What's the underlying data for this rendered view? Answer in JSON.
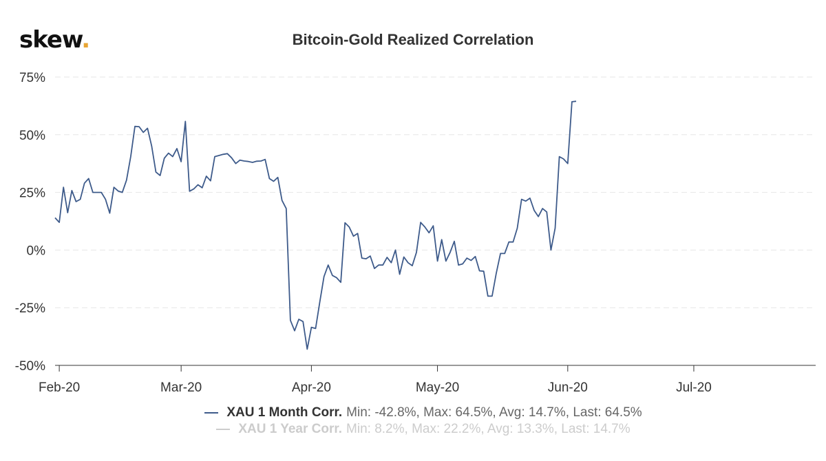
{
  "brand": {
    "name": "skew",
    "dot": "."
  },
  "chart_data": {
    "type": "line",
    "title": "Bitcoin-Gold Realized Correlation",
    "xlabel": "",
    "ylabel": "",
    "ylim": [
      -50,
      75
    ],
    "yticks": [
      75,
      50,
      25,
      0,
      -25,
      -50
    ],
    "ytick_labels": [
      "75%",
      "50%",
      "25%",
      "0%",
      "-25%",
      "-50%"
    ],
    "xlim": [
      "2020-01-31",
      "2020-07-30"
    ],
    "xticks": [
      {
        "date": "2020-02-01",
        "label": "Feb-20"
      },
      {
        "date": "2020-03-01",
        "label": "Mar-20"
      },
      {
        "date": "2020-04-01",
        "label": "Apr-20"
      },
      {
        "date": "2020-05-01",
        "label": "May-20"
      },
      {
        "date": "2020-06-01",
        "label": "Jun-20"
      },
      {
        "date": "2020-07-01",
        "label": "Jul-20"
      }
    ],
    "grid": true,
    "colors": {
      "series1": "#3d5a8a",
      "series2": "#cccccc",
      "grid": "#e6e6e6",
      "axis": "#333333"
    },
    "series": [
      {
        "name": "XAU 1 Month Corr.",
        "stats": "Min: -42.8%, Max: 64.5%, Avg: 14.7%, Last: 64.5%",
        "points": [
          [
            "2020-01-31",
            14
          ],
          [
            "2020-02-01",
            12
          ],
          [
            "2020-02-02",
            27.2
          ],
          [
            "2020-02-03",
            16.2
          ],
          [
            "2020-02-04",
            25.8
          ],
          [
            "2020-02-05",
            21
          ],
          [
            "2020-02-06",
            22
          ],
          [
            "2020-02-07",
            29
          ],
          [
            "2020-02-08",
            31
          ],
          [
            "2020-02-09",
            25
          ],
          [
            "2020-02-11",
            25
          ],
          [
            "2020-02-12",
            22
          ],
          [
            "2020-02-13",
            16
          ],
          [
            "2020-02-14",
            27.2
          ],
          [
            "2020-02-15",
            25.6
          ],
          [
            "2020-02-16",
            25
          ],
          [
            "2020-02-17",
            30.3
          ],
          [
            "2020-02-18",
            40.5
          ],
          [
            "2020-02-19",
            53.6
          ],
          [
            "2020-02-20",
            53.5
          ],
          [
            "2020-02-21",
            51
          ],
          [
            "2020-02-22",
            52.8
          ],
          [
            "2020-02-23",
            45
          ],
          [
            "2020-02-24",
            33.8
          ],
          [
            "2020-02-25",
            32.3
          ],
          [
            "2020-02-26",
            39.8
          ],
          [
            "2020-02-27",
            42
          ],
          [
            "2020-02-28",
            40.5
          ],
          [
            "2020-02-29",
            44
          ],
          [
            "2020-03-01",
            38.3
          ],
          [
            "2020-03-02",
            55.8
          ],
          [
            "2020-03-03",
            25.5
          ],
          [
            "2020-03-04",
            26.5
          ],
          [
            "2020-03-05",
            28.3
          ],
          [
            "2020-03-06",
            27
          ],
          [
            "2020-03-07",
            32
          ],
          [
            "2020-03-08",
            30
          ],
          [
            "2020-03-09",
            40.5
          ],
          [
            "2020-03-10",
            41
          ],
          [
            "2020-03-11",
            41.5
          ],
          [
            "2020-03-12",
            41.8
          ],
          [
            "2020-03-13",
            40
          ],
          [
            "2020-03-14",
            37.5
          ],
          [
            "2020-03-15",
            39
          ],
          [
            "2020-03-16",
            38.6
          ],
          [
            "2020-03-17",
            38.4
          ],
          [
            "2020-03-18",
            38
          ],
          [
            "2020-03-19",
            38.5
          ],
          [
            "2020-03-20",
            38.6
          ],
          [
            "2020-03-21",
            39.3
          ],
          [
            "2020-03-22",
            31
          ],
          [
            "2020-03-23",
            29.8
          ],
          [
            "2020-03-24",
            31.5
          ],
          [
            "2020-03-25",
            21.5
          ],
          [
            "2020-03-26",
            18
          ],
          [
            "2020-03-27",
            -30.5
          ],
          [
            "2020-03-28",
            -35
          ],
          [
            "2020-03-29",
            -30
          ],
          [
            "2020-03-30",
            -31
          ],
          [
            "2020-03-31",
            -43
          ],
          [
            "2020-04-01",
            -33.5
          ],
          [
            "2020-04-02",
            -34
          ],
          [
            "2020-04-03",
            -22.5
          ],
          [
            "2020-04-04",
            -11.5
          ],
          [
            "2020-04-05",
            -6.5
          ],
          [
            "2020-04-06",
            -11
          ],
          [
            "2020-04-07",
            -12
          ],
          [
            "2020-04-08",
            -14
          ],
          [
            "2020-04-09",
            11.8
          ],
          [
            "2020-04-10",
            10
          ],
          [
            "2020-04-11",
            6
          ],
          [
            "2020-04-12",
            7.2
          ],
          [
            "2020-04-13",
            -3.5
          ],
          [
            "2020-04-14",
            -3.8
          ],
          [
            "2020-04-15",
            -2.6
          ],
          [
            "2020-04-16",
            -8
          ],
          [
            "2020-04-17",
            -6.5
          ],
          [
            "2020-04-18",
            -6.5
          ],
          [
            "2020-04-19",
            -3.2
          ],
          [
            "2020-04-20",
            -5.5
          ],
          [
            "2020-04-21",
            0
          ],
          [
            "2020-04-22",
            -10.5
          ],
          [
            "2020-04-23",
            -3
          ],
          [
            "2020-04-24",
            -5.5
          ],
          [
            "2020-04-25",
            -6.8
          ],
          [
            "2020-04-26",
            -1
          ],
          [
            "2020-04-27",
            12
          ],
          [
            "2020-04-28",
            10
          ],
          [
            "2020-04-29",
            7.5
          ],
          [
            "2020-04-30",
            10.5
          ],
          [
            "2020-05-01",
            -4.8
          ],
          [
            "2020-05-02",
            4.5
          ],
          [
            "2020-05-03",
            -4.8
          ],
          [
            "2020-05-04",
            -1
          ],
          [
            "2020-05-05",
            3.8
          ],
          [
            "2020-05-06",
            -6.5
          ],
          [
            "2020-05-07",
            -6
          ],
          [
            "2020-05-08",
            -3.5
          ],
          [
            "2020-05-09",
            -4.5
          ],
          [
            "2020-05-10",
            -2.8
          ],
          [
            "2020-05-11",
            -9
          ],
          [
            "2020-05-12",
            -9.2
          ],
          [
            "2020-05-13",
            -20
          ],
          [
            "2020-05-14",
            -20
          ],
          [
            "2020-05-15",
            -10
          ],
          [
            "2020-05-16",
            -1.5
          ],
          [
            "2020-05-17",
            -1.5
          ],
          [
            "2020-05-18",
            3.5
          ],
          [
            "2020-05-19",
            3.5
          ],
          [
            "2020-05-20",
            9.5
          ],
          [
            "2020-05-21",
            22
          ],
          [
            "2020-05-22",
            21.2
          ],
          [
            "2020-05-23",
            22.5
          ],
          [
            "2020-05-24",
            17.2
          ],
          [
            "2020-05-25",
            14.5
          ],
          [
            "2020-05-26",
            18
          ],
          [
            "2020-05-27",
            16.5
          ],
          [
            "2020-05-28",
            0
          ],
          [
            "2020-05-29",
            9.5
          ],
          [
            "2020-05-30",
            40.5
          ],
          [
            "2020-05-31",
            39.5
          ],
          [
            "2020-06-01",
            37.5
          ],
          [
            "2020-06-02",
            64.3
          ],
          [
            "2020-06-03",
            64.5
          ]
        ]
      },
      {
        "name": "XAU 1 Year Corr.",
        "stats": "Min: 8.2%, Max: 22.2%, Avg: 13.3%, Last: 14.7%",
        "points": []
      }
    ]
  }
}
